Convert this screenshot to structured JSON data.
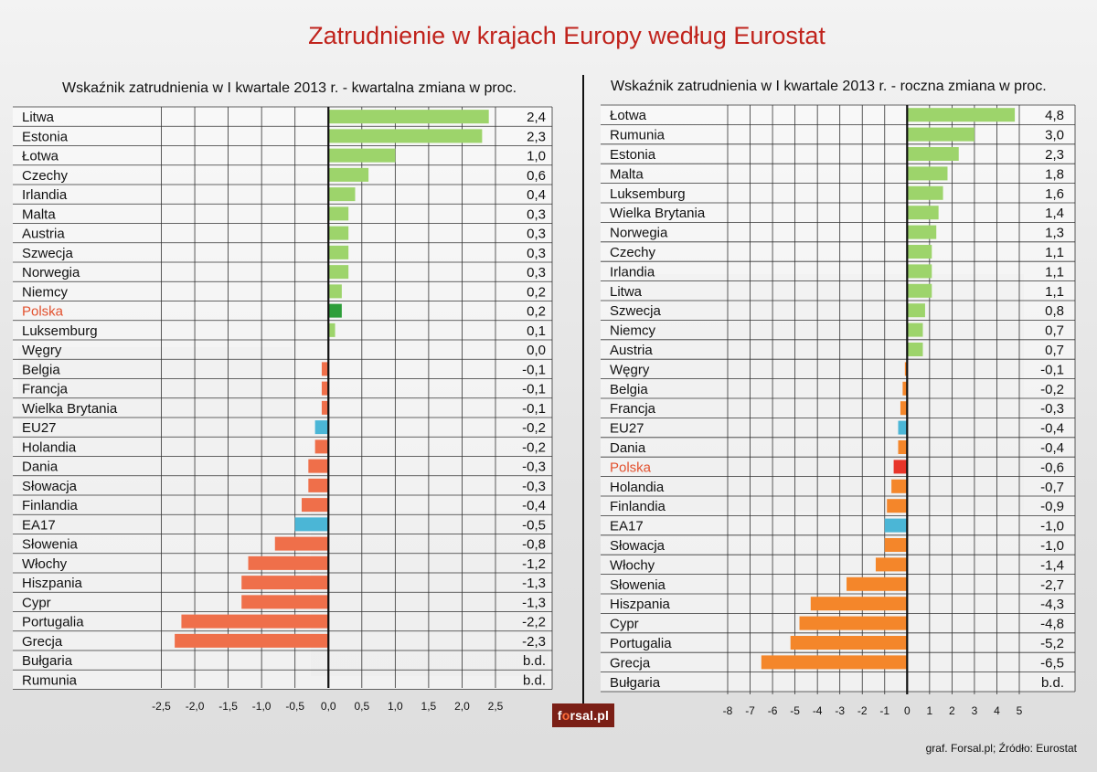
{
  "title": "Zatrudnienie w krajach Europy według Eurostat",
  "source": "graf. Forsal.pl; Źródło: Eurostat",
  "logo": {
    "text": "forsal.pl"
  },
  "colors": {
    "title": "#c0231c",
    "positive": "#9dd46b",
    "negative": "#ef6f4a",
    "aggregate": "#4bb6d6",
    "highlight_label": "#e2512e"
  },
  "chart_data": [
    {
      "type": "bar",
      "orientation": "horizontal",
      "title": "Wskaźnik zatrudnienia w I kwartale 2013 r. - kwartalna zmiana w proc.",
      "xlim": [
        -2.5,
        2.5
      ],
      "xticks": [
        "-2,5",
        "-2,0",
        "-1,5",
        "-1,0",
        "-0,5",
        "0,0",
        "0,5",
        "1,0",
        "1,5",
        "2,0",
        "2,5"
      ],
      "grid": true,
      "categories": [
        "Litwa",
        "Estonia",
        "Łotwa",
        "Czechy",
        "Irlandia",
        "Malta",
        "Austria",
        "Szwecja",
        "Norwegia",
        "Niemcy",
        "Polska",
        "Luksemburg",
        "Węgry",
        "Belgia",
        "Francja",
        "Wielka Brytania",
        "EU27",
        "Holandia",
        "Dania",
        "Słowacja",
        "Finlandia",
        "EA17",
        "Słowenia",
        "Włochy",
        "Hiszpania",
        "Cypr",
        "Portugalia",
        "Grecja",
        "Bułgaria",
        "Rumunia"
      ],
      "values": [
        2.4,
        2.3,
        1.0,
        0.6,
        0.4,
        0.3,
        0.3,
        0.3,
        0.3,
        0.2,
        0.2,
        0.1,
        0.0,
        -0.1,
        -0.1,
        -0.1,
        -0.2,
        -0.2,
        -0.3,
        -0.3,
        -0.4,
        -0.5,
        -0.8,
        -1.2,
        -1.3,
        -1.3,
        -2.2,
        -2.3,
        null,
        null
      ],
      "value_labels": [
        "2,4",
        "2,3",
        "1,0",
        "0,6",
        "0,4",
        "0,3",
        "0,3",
        "0,3",
        "0,3",
        "0,2",
        "0,2",
        "0,1",
        "0,0",
        "-0,1",
        "-0,1",
        "-0,1",
        "-0,2",
        "-0,2",
        "-0,3",
        "-0,3",
        "-0,4",
        "-0,5",
        "-0,8",
        "-1,2",
        "-1,3",
        "-1,3",
        "-2,2",
        "-2,3",
        "b.d.",
        "b.d."
      ],
      "highlight": "Polska",
      "highlight_color": "#2e9e3a",
      "aggregates": [
        "EU27",
        "EA17"
      ]
    },
    {
      "type": "bar",
      "orientation": "horizontal",
      "title": "Wskaźnik zatrudnienia w I kwartale 2013 r. - roczna zmiana w proc.",
      "xlim": [
        -8,
        5
      ],
      "xticks": [
        "-8",
        "-7",
        "-6",
        "-5",
        "-4",
        "-3",
        "-2",
        "-1",
        "0",
        "1",
        "2",
        "3",
        "4",
        "5"
      ],
      "grid": true,
      "categories": [
        "Łotwa",
        "Rumunia",
        "Estonia",
        "Malta",
        "Luksemburg",
        "Wielka Brytania",
        "Norwegia",
        "Czechy",
        "Irlandia",
        "Litwa",
        "Szwecja",
        "Niemcy",
        "Austria",
        "Węgry",
        "Belgia",
        "Francja",
        "EU27",
        "Dania",
        "Polska",
        "Holandia",
        "Finlandia",
        "EA17",
        "Słowacja",
        "Włochy",
        "Słowenia",
        "Hiszpania",
        "Cypr",
        "Portugalia",
        "Grecja",
        "Bułgaria"
      ],
      "values": [
        4.8,
        3.0,
        2.3,
        1.8,
        1.6,
        1.4,
        1.3,
        1.1,
        1.1,
        1.1,
        0.8,
        0.7,
        0.7,
        -0.1,
        -0.2,
        -0.3,
        -0.4,
        -0.4,
        -0.6,
        -0.7,
        -0.9,
        -1.0,
        -1.0,
        -1.4,
        -2.7,
        -4.3,
        -4.8,
        -5.2,
        -6.5,
        null
      ],
      "value_labels": [
        "4,8",
        "3,0",
        "2,3",
        "1,8",
        "1,6",
        "1,4",
        "1,3",
        "1,1",
        "1,1",
        "1,1",
        "0,8",
        "0,7",
        "0,7",
        "-0,1",
        "-0,2",
        "-0,3",
        "-0,4",
        "-0,4",
        "-0,6",
        "-0,7",
        "-0,9",
        "-1,0",
        "-1,0",
        "-1,4",
        "-2,7",
        "-4,3",
        "-4,8",
        "-5,2",
        "-6,5",
        "b.d."
      ],
      "highlight": "Polska",
      "highlight_color": "#e8352a",
      "aggregates": [
        "EU27",
        "EA17"
      ],
      "negative_color": "#f4862a"
    }
  ]
}
